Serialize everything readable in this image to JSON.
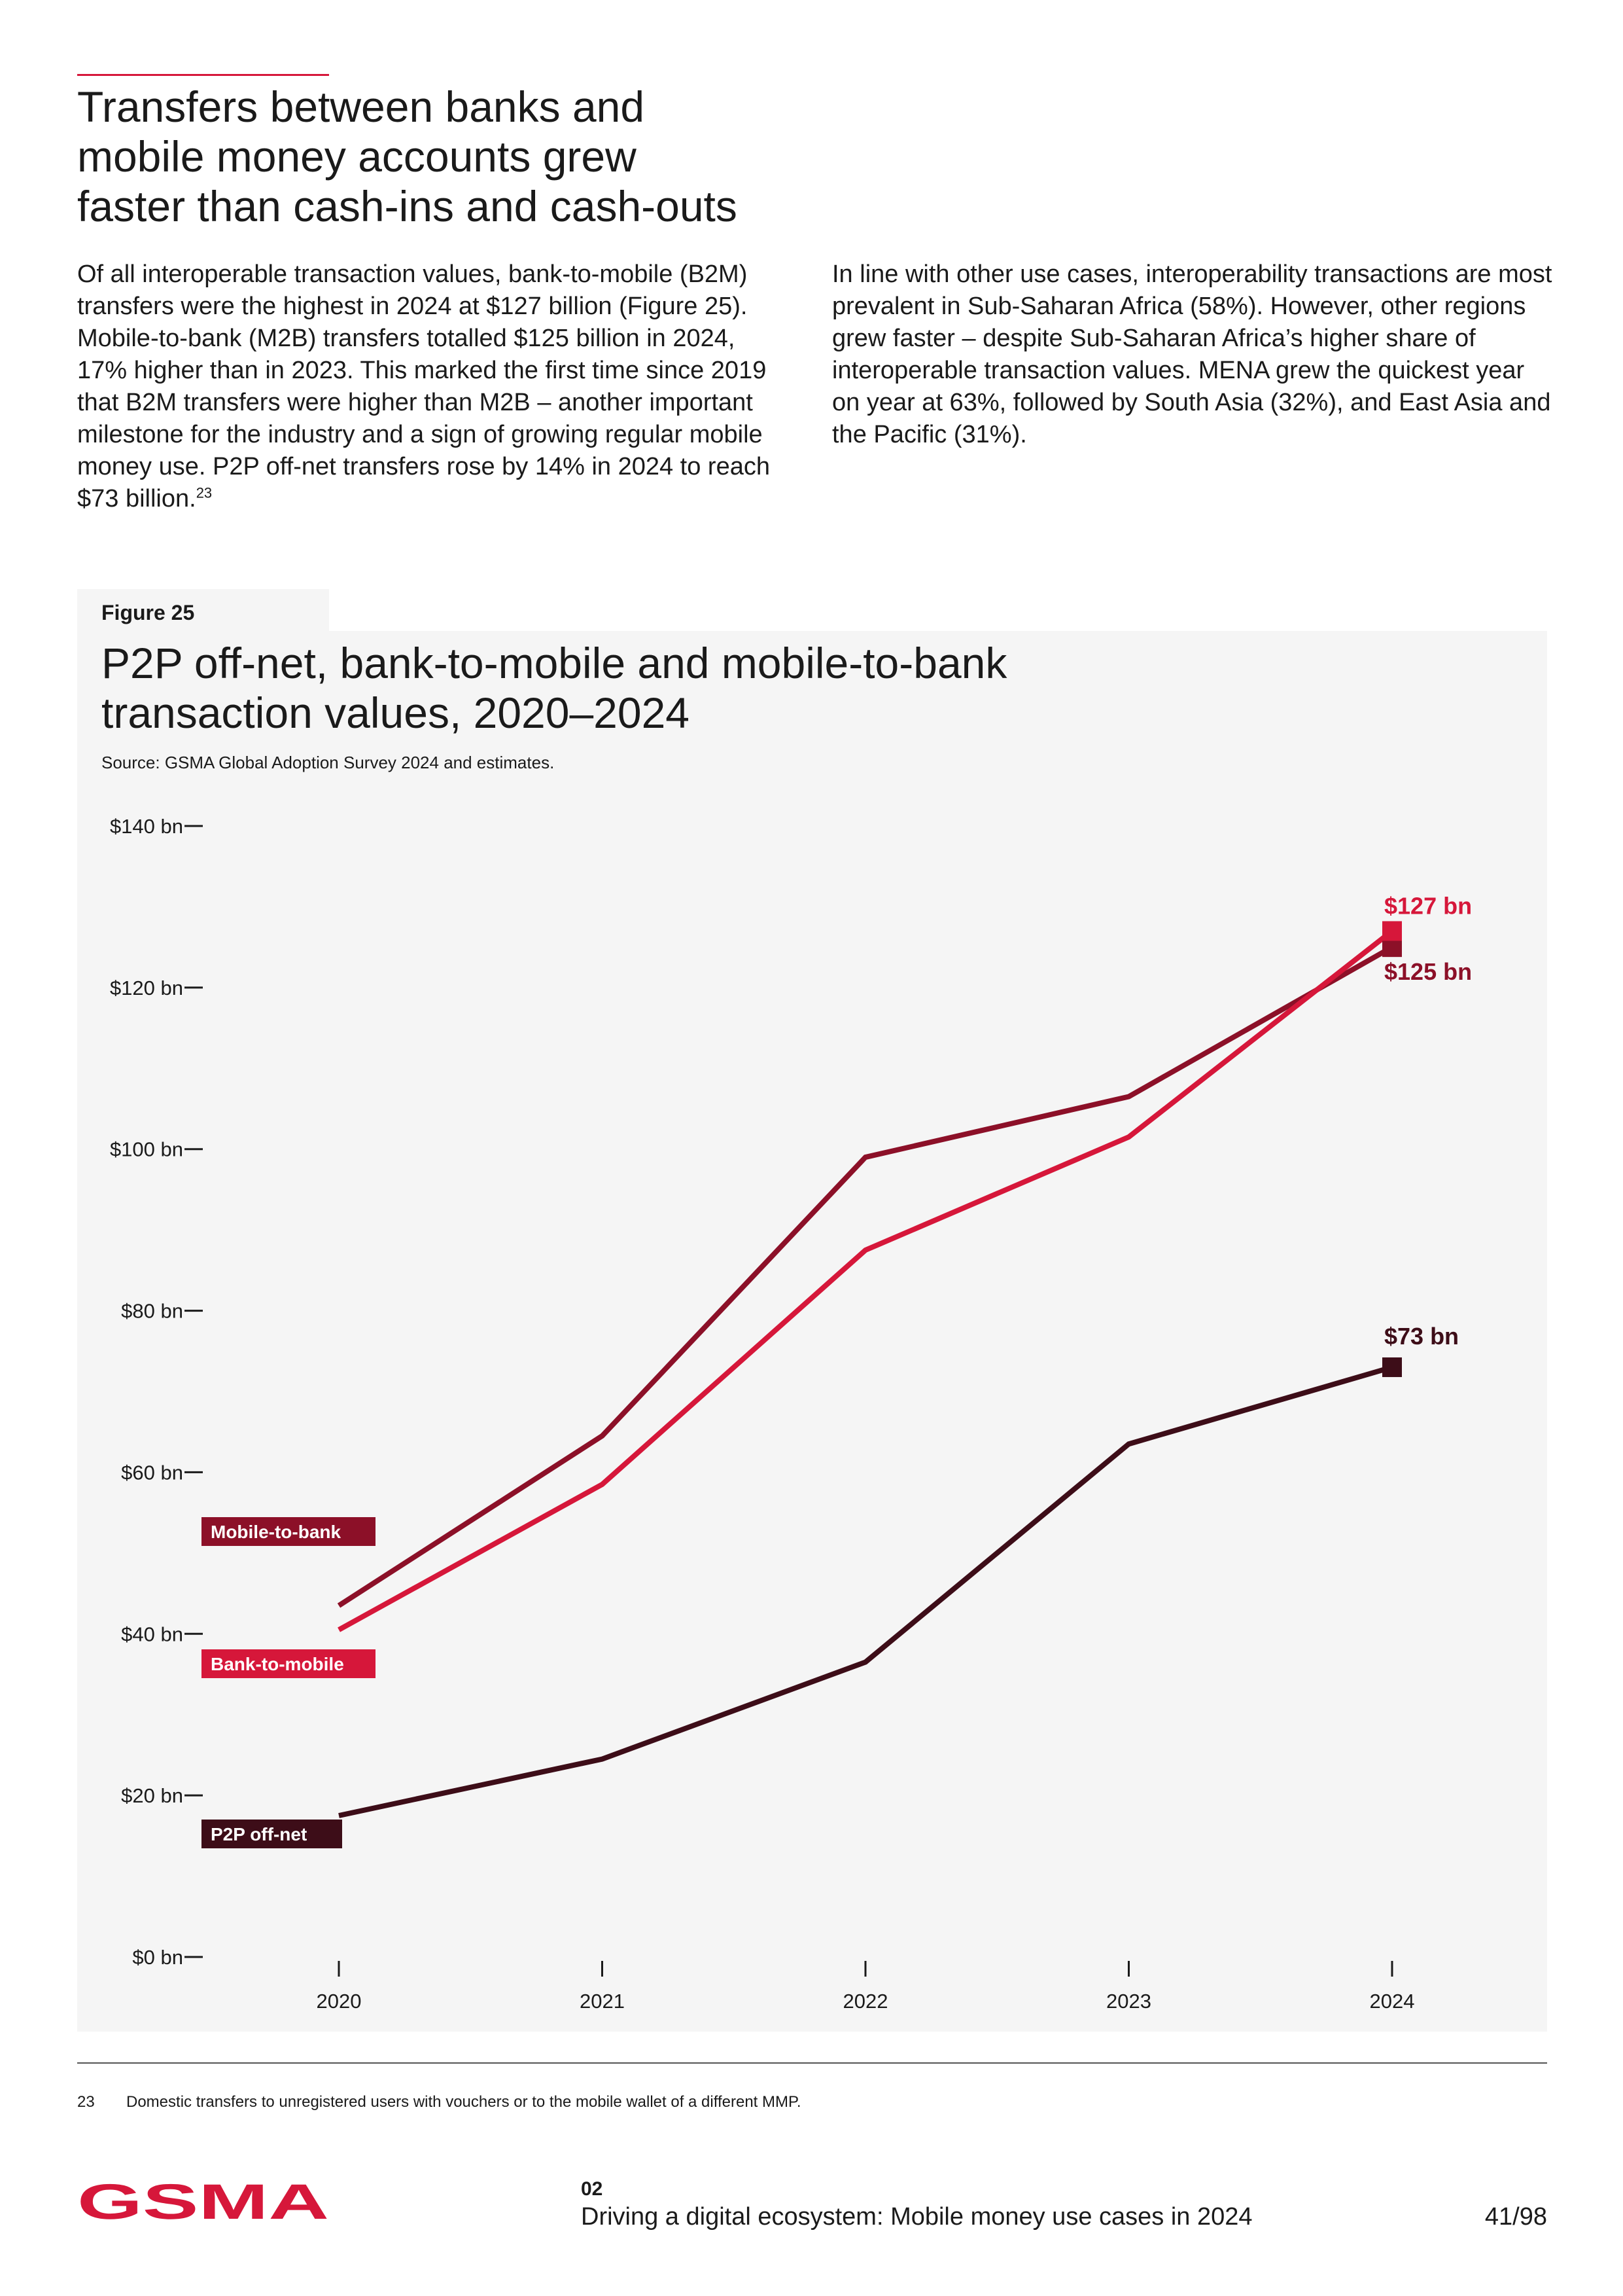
{
  "heading": {
    "line1": "Transfers between banks and",
    "line2": "mobile money accounts grew",
    "line3": "faster than cash-ins and cash-outs"
  },
  "left_paragraph": {
    "text": "Of all interoperable transaction values, bank-to-mobile (B2M) transfers were the highest in 2024 at $127 billion (Figure 25). Mobile-to-bank (M2B) transfers totalled $125 billion in 2024, 17% higher than in 2023. This marked the first time since 2019 that B2M transfers were higher than M2B – another important milestone for the industry and a sign of growing regular mobile money use. P2P off-net transfers rose by 14% in 2024 to reach $73 billion.",
    "footnote_ref": "23"
  },
  "right_paragraph": {
    "text": "In line with other use cases, interoperability transactions are most prevalent in Sub-Saharan Africa (58%). However, other regions grew faster – despite Sub-Saharan Africa’s higher share of interoperable transaction values. MENA grew the quickest year on year at 63%, followed by South Asia (32%), and East Asia and the Pacific (31%)."
  },
  "figure": {
    "label": "Figure 25",
    "title_line1": "P2P off-net, bank-to-mobile and mobile-to-bank",
    "title_line2": "transaction values, 2020–2024",
    "source": "Source: GSMA Global Adoption Survey 2024 and estimates."
  },
  "chart_data": {
    "type": "line",
    "title": "P2P off-net, bank-to-mobile and mobile-to-bank transaction values, 2020–2024",
    "xlabel": "",
    "ylabel": "",
    "x": [
      2020,
      2021,
      2022,
      2023,
      2024
    ],
    "x_labels": [
      "2020",
      "2021",
      "2022",
      "2023",
      "2024"
    ],
    "ylim": [
      0,
      140
    ],
    "y_ticks": [
      0,
      20,
      40,
      60,
      80,
      100,
      120,
      140
    ],
    "y_tick_labels": [
      "$0 bn",
      "$20 bn",
      "$40 bn",
      "$60 bn",
      "$80 bn",
      "$100 bn",
      "$120 bn",
      "$140 bn"
    ],
    "grid": false,
    "series": [
      {
        "name": "Mobile-to-bank",
        "color": "#8c1028",
        "values": [
          43.5,
          64.5,
          99,
          106.5,
          125
        ],
        "end_label": "$125 bn"
      },
      {
        "name": "Bank-to-mobile",
        "color": "#d6173a",
        "values": [
          40.5,
          58.5,
          87.5,
          101.5,
          127
        ],
        "end_label": "$127 bn"
      },
      {
        "name": "P2P off-net",
        "color": "#3d0d18",
        "values": [
          17.5,
          24.5,
          36.5,
          63.5,
          73
        ],
        "end_label": "$73 bn"
      }
    ]
  },
  "footnote": {
    "number": "23",
    "text": "Domestic transfers to unregistered users with vouchers or to the mobile wallet of a different MMP."
  },
  "footer": {
    "logo_text": "GSMA",
    "section_number": "02",
    "section_title": "Driving a digital ecosystem: Mobile money use cases in 2024",
    "page": "41/98"
  },
  "colors": {
    "accent": "#d6173a",
    "dark_red": "#8c1028",
    "darkest": "#3d0d18",
    "panel_bg": "#f5f5f5"
  }
}
